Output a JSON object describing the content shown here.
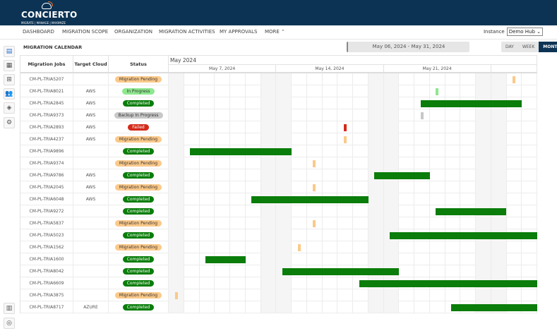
{
  "app": {
    "name": "CONCIERTO",
    "tagline": "MIGRATE | MANAGE | MAXIMIZE"
  },
  "nav": {
    "items": [
      "DASHBOARD",
      "MIGRATION SCOPE",
      "ORGANIZATION",
      "MIGRATION ACTIVITIES",
      "MY APPROVALS",
      "MORE ⌃"
    ],
    "instance_label": "Instance",
    "instance_value": "Demo Hub ⌄"
  },
  "sidebar": {
    "icons": [
      "report-icon",
      "calendar-icon",
      "apps-icon",
      "users-icon",
      "layers-icon",
      "user-settings-icon",
      "book-icon",
      "support-icon"
    ]
  },
  "page": {
    "title": "MIGRATION CALENDAR",
    "date_range": "May 06, 2024 - May 31, 2024",
    "views": [
      "DAY",
      "WEEK",
      "MONTH"
    ],
    "active_view": "MONTH"
  },
  "table": {
    "headers": [
      "Migration Jobs",
      "Target Cloud",
      "Status"
    ],
    "month": "May 2024",
    "weeks": [
      "May 7, 2024",
      "May 14, 2024",
      "May 21, 2024",
      ""
    ]
  },
  "colors": {
    "Migration Pending": "#fbc98a",
    "In Progress": "#8ee88e",
    "Completed": "#0a7d0a",
    "Backup In Progress": "#c8c8c8",
    "Failed": "#d42a1a"
  },
  "chart_data": {
    "type": "gantt",
    "rows": [
      {
        "job": "CM-PL-TRIA5207",
        "cloud": "",
        "status": "Migration Pending",
        "start": "2024-05-27",
        "end": "2024-05-27"
      },
      {
        "job": "CM-PL-TRIA8021",
        "cloud": "AWS",
        "status": "In Progress",
        "start": "2024-05-22",
        "end": "2024-05-22"
      },
      {
        "job": "CM-PL-TRIA2845",
        "cloud": "AWS",
        "status": "Completed",
        "start": "2024-05-21",
        "end": "2024-05-27"
      },
      {
        "job": "CM-PL-TRIA9373",
        "cloud": "AWS",
        "status": "Backup In Progress",
        "start": "2024-05-21",
        "end": "2024-05-21"
      },
      {
        "job": "CM-PL-TRIA2893",
        "cloud": "AWS",
        "status": "Failed",
        "start": "2024-05-16",
        "end": "2024-05-16"
      },
      {
        "job": "CM-PL-TRIA4237",
        "cloud": "AWS",
        "status": "Migration Pending",
        "start": "2024-05-16",
        "end": "2024-05-16"
      },
      {
        "job": "CM-PL-TRIA9896",
        "cloud": "",
        "status": "Completed",
        "start": "2024-05-06",
        "end": "2024-05-12"
      },
      {
        "job": "CM-PL-TRIA9374",
        "cloud": "",
        "status": "Migration Pending",
        "start": "2024-05-14",
        "end": "2024-05-14"
      },
      {
        "job": "CM-PL-TRIA9786",
        "cloud": "AWS",
        "status": "Completed",
        "start": "2024-05-18",
        "end": "2024-05-21"
      },
      {
        "job": "CM-PL-TRIA2045",
        "cloud": "AWS",
        "status": "Migration Pending",
        "start": "2024-05-14",
        "end": "2024-05-14"
      },
      {
        "job": "CM-PL-TRIA6048",
        "cloud": "AWS",
        "status": "Completed",
        "start": "2024-05-10",
        "end": "2024-05-17"
      },
      {
        "job": "CM-PL-TRIA9272",
        "cloud": "",
        "status": "Completed",
        "start": "2024-05-22",
        "end": "2024-05-26"
      },
      {
        "job": "CM-PL-TRIA5837",
        "cloud": "",
        "status": "Migration Pending",
        "start": "2024-05-14",
        "end": "2024-05-14"
      },
      {
        "job": "CM-PL-TRIA5023",
        "cloud": "",
        "status": "Completed",
        "start": "2024-05-19",
        "end": "2024-05-28"
      },
      {
        "job": "CM-PL-TRIA1562",
        "cloud": "",
        "status": "Migration Pending",
        "start": "2024-05-13",
        "end": "2024-05-13"
      },
      {
        "job": "CM-PL-TRIA1600",
        "cloud": "",
        "status": "Completed",
        "start": "2024-05-07",
        "end": "2024-05-09"
      },
      {
        "job": "CM-PL-TRIA8042",
        "cloud": "",
        "status": "Completed",
        "start": "2024-05-12",
        "end": "2024-05-19"
      },
      {
        "job": "CM-PL-TRIA6609",
        "cloud": "",
        "status": "Completed",
        "start": "2024-05-17",
        "end": "2024-05-28"
      },
      {
        "job": "CM-PL-TRIA3875",
        "cloud": "",
        "status": "Migration Pending",
        "start": "2024-05-05",
        "end": "2024-05-05"
      },
      {
        "job": "CM-PL-TRIA8717",
        "cloud": "AZURE",
        "status": "Completed",
        "start": "2024-05-23",
        "end": "2024-05-28"
      }
    ]
  }
}
